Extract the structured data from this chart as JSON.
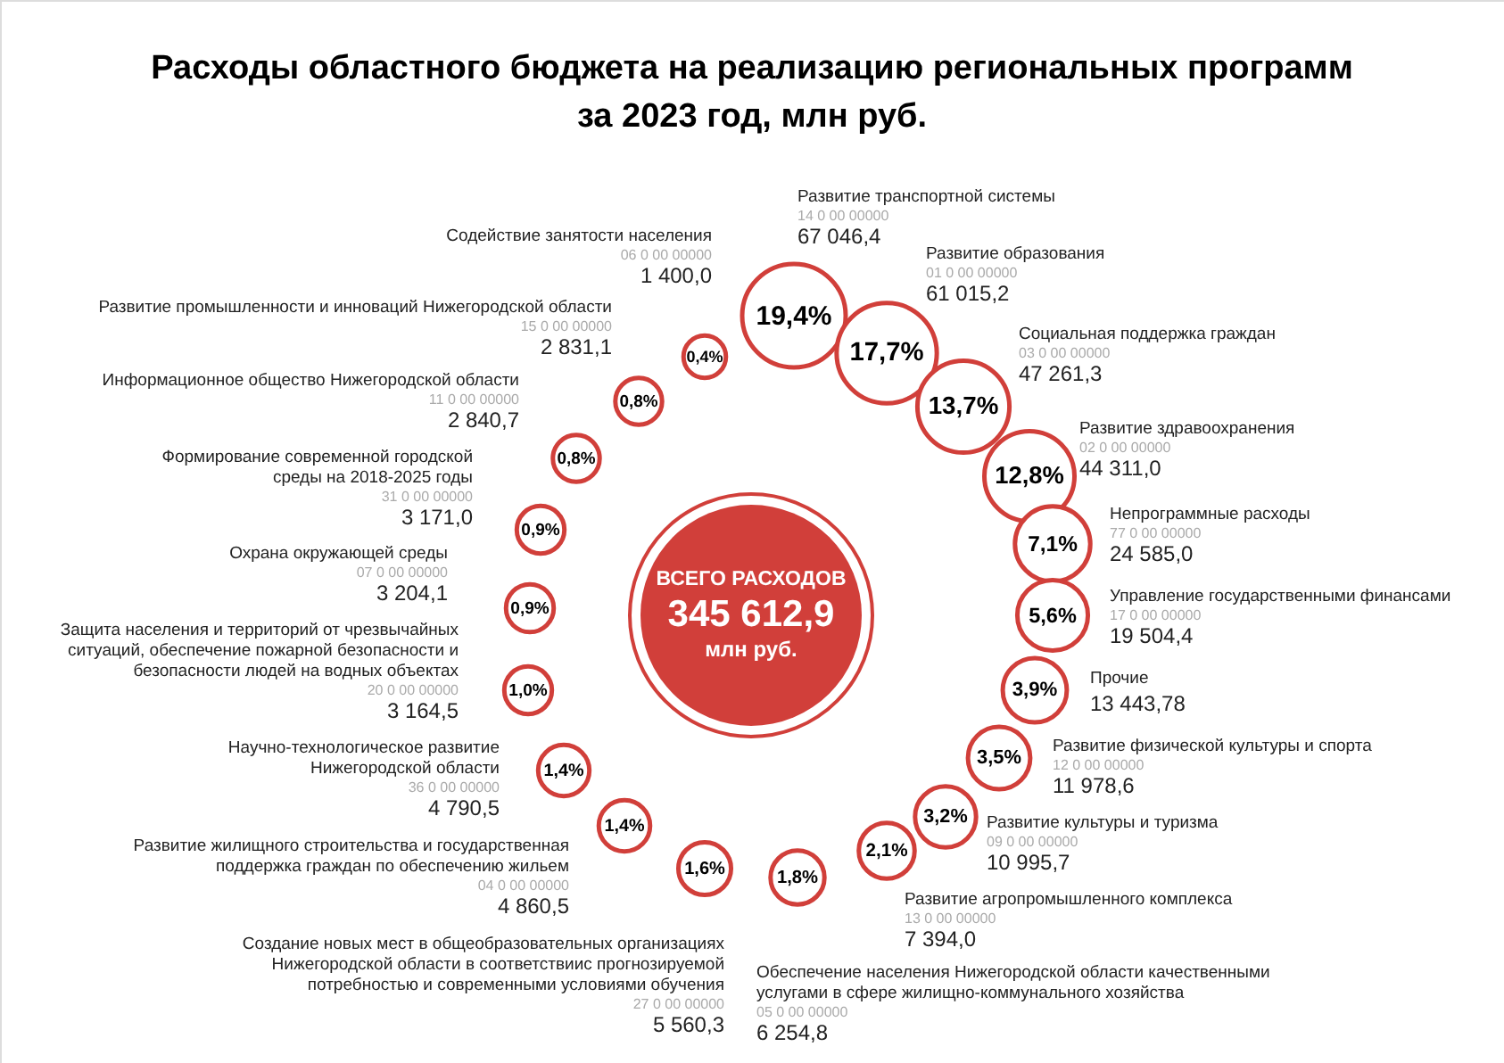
{
  "chart_data": {
    "type": "other",
    "title": [
      "Расходы областного бюджета на реализацию региональных программ",
      "за 2023 год, млн руб."
    ],
    "categories": [
      "Развитие транспортной системы",
      "Развитие образования",
      "Социальная поддержка граждан",
      "Развитие здравоохранения",
      "Непрограммные расходы",
      "Управление государственными финансами",
      "Прочие",
      "Развитие физической культуры и спорта",
      "Развитие культуры и туризма",
      "Развитие агропромышленного комплекса",
      "Обеспечение населения Нижегородской области качественными услугами в сфере жилищно-коммунального хозяйства",
      "Создание новых мест в общеобразовательных организациях Нижегородской области в соответствиис прогнозируемой потребностью и современными условиями обучения",
      "Развитие жилищного строительства и государственная поддержка граждан по обеспечению жильем",
      "Научно-технологическое развитие Нижегородской области",
      "Защита населения и территорий от чрезвычайных ситуаций, обеспечение пожарной безопасности и безопасности людей на водных объектах",
      "Охрана окружающей среды",
      "Формирование современной городской среды на 2018-2025 годы",
      "Информационное общество Нижегородской области",
      "Развитие промышленности и инноваций Нижегородской области",
      "Содействие занятости населения"
    ],
    "values": [
      67046.4,
      61015.2,
      47261.3,
      44311.0,
      24585.0,
      19504.4,
      13443.78,
      11978.6,
      10995.7,
      7394.0,
      6254.8,
      5560.3,
      4860.5,
      4790.5,
      3164.5,
      3204.1,
      3171.0,
      2840.7,
      2831.1,
      1400.0
    ],
    "value_labels": [
      "67 046,4",
      "61 015,2",
      "47 261,3",
      "44 311,0",
      "24 585,0",
      "19 504,4",
      "13 443,78",
      "11 978,6",
      "10 995,7",
      "7 394,0",
      "6 254,8",
      "5 560,3",
      "4 860,5",
      "4 790,5",
      "3 164,5",
      "3 204,1",
      "3 171,0",
      "2 840,7",
      "2 831,1",
      "1 400,0"
    ],
    "color": "#d13f3a",
    "annotations": [
      "ВСЕГО РАСХОДОВ",
      "345 612,9",
      "млн руб.",
      {
        "text": "19,4%",
        "x": "Развитие транспортной системы"
      },
      {
        "text": "17,7%",
        "x": "Развитие образования"
      },
      {
        "text": "13,7%",
        "x": "Социальная поддержка граждан"
      },
      {
        "text": "12,8%",
        "x": "Развитие здравоохранения"
      },
      {
        "text": "7,1%",
        "x": "Непрограммные расходы"
      },
      {
        "text": "5,6%",
        "x": "Управление государственными финансами"
      },
      {
        "text": "3,9%",
        "x": "Прочие"
      },
      {
        "text": "3,5%",
        "x": "Развитие физической культуры и спорта"
      },
      {
        "text": "3,2%",
        "x": "Развитие культуры и туризма"
      },
      {
        "text": "2,1%",
        "x": "Развитие агропромышленного комплекса"
      },
      {
        "text": "1,8%",
        "x": "Обеспечение населения Нижегородской области качественными услугами в сфере жилищно-коммунального хозяйства"
      },
      {
        "text": "1,6%",
        "x": "Создание новых мест в общеобразовательных организациях Нижегородской области в соответствиис прогнозируемой потребностью и современными условиями обучения"
      },
      {
        "text": "1,4%",
        "x": "Развитие жилищного строительства и государственная поддержка граждан по обеспечению жильем"
      },
      {
        "text": "1,4%",
        "x": "Научно-технологическое развитие Нижегородской области"
      },
      {
        "text": "1,0%",
        "x": "Защита населения и территорий от чрезвычайных ситуаций, обеспечение пожарной безопасности и безопасности людей на водных объектах"
      },
      {
        "text": "0,9%",
        "x": "Охрана окружающей среды"
      },
      {
        "text": "0,9%",
        "x": "Формирование современной городской среды на 2018-2025 годы"
      },
      {
        "text": "0,8%",
        "x": "Информационное общество Нижегородской области"
      },
      {
        "text": "0,8%",
        "x": "Развитие промышленности и инноваций Нижегородской области"
      },
      {
        "text": "0,4%",
        "x": "Содействие занятости населения"
      },
      {
        "text": "14 0 00 00000",
        "x": "Развитие транспортной системы"
      },
      {
        "text": "01 0 00 00000",
        "x": "Развитие образования"
      },
      {
        "text": "03 0 00 00000",
        "x": "Социальная поддержка граждан"
      },
      {
        "text": "02 0 00 00000",
        "x": "Развитие здравоохранения"
      },
      {
        "text": "77 0 00 00000",
        "x": "Непрограммные расходы"
      },
      {
        "text": "17 0 00 00000",
        "x": "Управление государственными финансами"
      },
      {
        "text": "12 0 00 00000",
        "x": "Развитие физической культуры и спорта"
      },
      {
        "text": "09 0 00 00000",
        "x": "Развитие культуры и туризма"
      },
      {
        "text": "13 0 00 00000",
        "x": "Развитие агропромышленного комплекса"
      },
      {
        "text": "05 0 00 00000",
        "x": "Обеспечение населения Нижегородской области качественными услугами в сфере жилищно-коммунального хозяйства"
      },
      {
        "text": "27 0 00 00000",
        "x": "Создание новых мест в общеобразовательных организациях Нижегородской области в соответствиис прогнозируемой потребностью и современными условиями обучения"
      },
      {
        "text": "04 0 00 00000",
        "x": "Развитие жилищного строительства и государственная поддержка граждан по обеспечению жильем"
      },
      {
        "text": "36 0 00 00000",
        "x": "Научно-технологическое развитие Нижегородской области"
      },
      {
        "text": "20 0 00 00000",
        "x": "Защита населения и территорий от чрезвычайных ситуаций, обеспечение пожарной безопасности и безопасности людей на водных объектах"
      },
      {
        "text": "07 0 00 00000",
        "x": "Охрана окружающей среды"
      },
      {
        "text": "31 0 00 00000",
        "x": "Формирование современной городской среды на 2018-2025 годы"
      },
      {
        "text": "11 0 00 00000",
        "x": "Информационное общество Нижегородской области"
      },
      {
        "text": "15 0 00 00000",
        "x": "Развитие промышленности и инноваций Нижегородской области"
      },
      {
        "text": "06 0 00 00000",
        "x": "Содействие занятости населения"
      }
    ]
  }
}
